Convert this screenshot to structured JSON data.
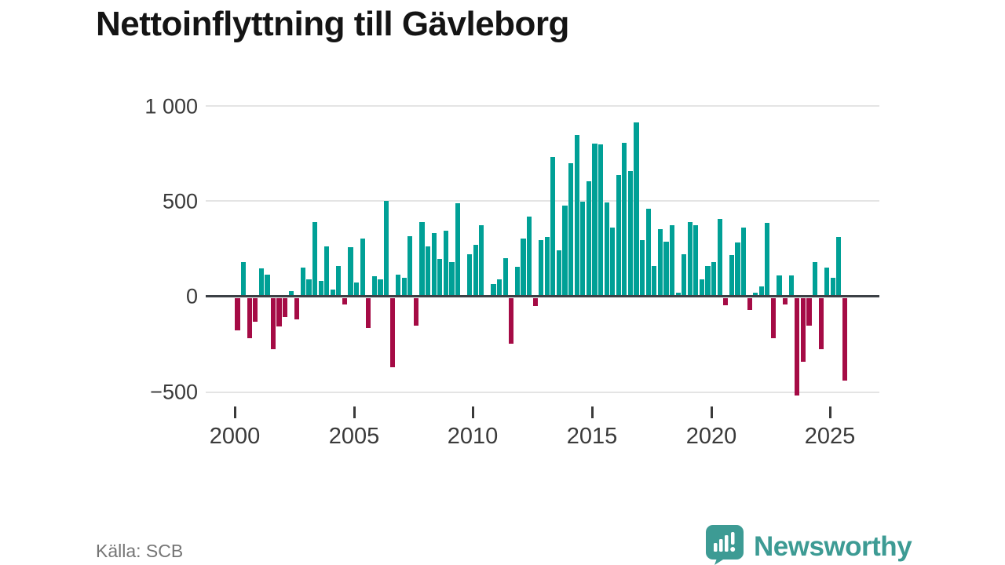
{
  "chart_data": {
    "type": "bar",
    "title": "Nettoinflyttning till Gävleborg",
    "source": "Källa: SCB",
    "frequency": "quarterly",
    "x_start": "2000 Q1",
    "x_end": "2025 Q3",
    "x_tick_labels": [
      "2000",
      "2005",
      "2010",
      "2015",
      "2020",
      "2025"
    ],
    "y_tick_labels": [
      "1 000",
      "500",
      "0",
      "−500"
    ],
    "y_ticks": [
      1000,
      500,
      0,
      -500
    ],
    "ylim": [
      -550,
      1050
    ],
    "grid": "horizontal",
    "colors": {
      "positive": "#00a096",
      "negative": "#a50b45"
    },
    "values": [
      -170,
      180,
      -210,
      -125,
      145,
      115,
      -270,
      -150,
      -100,
      25,
      -115,
      150,
      90,
      390,
      80,
      260,
      35,
      160,
      -35,
      255,
      70,
      300,
      -160,
      105,
      90,
      500,
      -365,
      115,
      95,
      315,
      -145,
      390,
      260,
      330,
      195,
      345,
      180,
      485,
      0,
      220,
      270,
      370,
      0,
      65,
      90,
      200,
      -240,
      155,
      300,
      415,
      -45,
      295,
      310,
      730,
      240,
      475,
      695,
      845,
      495,
      600,
      800,
      795,
      490,
      360,
      635,
      805,
      655,
      910,
      295,
      460,
      160,
      350,
      285,
      370,
      20,
      220,
      390,
      370,
      90,
      160,
      180,
      405,
      -40,
      215,
      280,
      360,
      -65,
      20,
      50,
      385,
      -210,
      110,
      -35,
      110,
      -510,
      -335,
      -145,
      180,
      -270,
      150,
      95,
      310,
      -435
    ]
  },
  "footer": {
    "source_label": "Källa: SCB",
    "brand": "Newsworthy"
  }
}
